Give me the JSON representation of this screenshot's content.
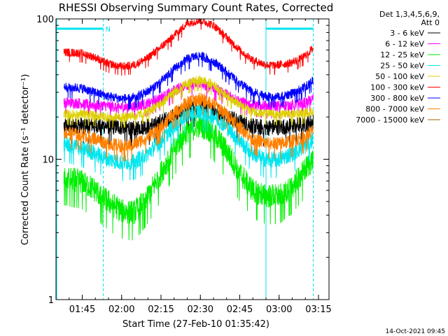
{
  "chart_data": {
    "type": "line",
    "title": "RHESSI Observing Summary Count Rates, Corrected",
    "xlabel": "Start Time (27-Feb-10 01:35:42)",
    "ylabel": "Corrected Count Rate (s⁻¹ detector⁻¹)",
    "yscale": "log",
    "ylim": [
      1,
      100
    ],
    "xlim": [
      "01:35",
      "03:19"
    ],
    "x_ticks": [
      "01:45",
      "02:00",
      "02:15",
      "02:30",
      "02:45",
      "03:00",
      "03:15"
    ],
    "y_ticks": [
      "1",
      "10",
      "100"
    ],
    "legend": {
      "placement": "right",
      "header": [
        "Det 1,3,4,5,6,9,",
        "Att 0"
      ]
    },
    "flags": [
      {
        "label": "N",
        "start": "01:35",
        "end": "01:53",
        "color": "#00e5ee"
      },
      {
        "label": "",
        "start": "02:55",
        "end": "03:13",
        "color": "#00e5ee"
      }
    ],
    "timeline_marks": [
      {
        "time": "01:53",
        "style": "dashed"
      },
      {
        "time": "02:55",
        "style": "solid"
      },
      {
        "time": "03:13",
        "style": "dashed"
      }
    ],
    "x": [
      "01:38",
      "01:45",
      "01:50",
      "01:55",
      "02:00",
      "02:05",
      "02:10",
      "02:15",
      "02:20",
      "02:25",
      "02:30",
      "02:35",
      "02:40",
      "02:45",
      "02:50",
      "02:55",
      "03:00",
      "03:05",
      "03:10",
      "03:13"
    ],
    "series": [
      {
        "name": "3 - 6 keV",
        "color": "#000000",
        "values": [
          17.5,
          17.5,
          17.6,
          17.2,
          17.0,
          16.8,
          17.2,
          18.5,
          20.5,
          22.5,
          23.5,
          22.5,
          20.5,
          18.5,
          17.3,
          16.8,
          17.0,
          17.3,
          17.8,
          18.5
        ]
      },
      {
        "name": "6 - 12 keV",
        "color": "#ff00ff",
        "values": [
          25.5,
          25.0,
          24.5,
          24.0,
          23.5,
          23.8,
          25.0,
          27.5,
          31.0,
          34.0,
          34.5,
          32.5,
          29.0,
          26.0,
          24.5,
          24.0,
          24.0,
          24.5,
          25.5,
          27.0
        ]
      },
      {
        "name": "12 - 25 keV",
        "color": "#00ee00",
        "values": [
          7.5,
          7.0,
          6.0,
          5.0,
          4.3,
          4.2,
          5.5,
          8.0,
          12.0,
          16.0,
          17.5,
          15.5,
          11.5,
          8.0,
          6.0,
          5.5,
          5.5,
          6.5,
          8.5,
          10.0
        ]
      },
      {
        "name": "25 - 50 keV",
        "color": "#00e5ee",
        "values": [
          13.0,
          12.0,
          11.0,
          10.0,
          9.5,
          9.7,
          11.0,
          13.5,
          17.5,
          21.0,
          22.0,
          20.5,
          17.0,
          13.5,
          11.0,
          10.0,
          10.0,
          11.0,
          12.5,
          14.0
        ]
      },
      {
        "name": "50 - 100 keV",
        "color": "#ddd000",
        "values": [
          21.0,
          21.0,
          20.5,
          20.0,
          20.0,
          20.5,
          22.0,
          25.0,
          30.0,
          35.0,
          37.0,
          34.0,
          29.0,
          24.5,
          22.0,
          21.0,
          21.0,
          21.0,
          21.5,
          22.0
        ]
      },
      {
        "name": "100 - 300 keV",
        "color": "#ff0000",
        "values": [
          58.0,
          57.0,
          53.0,
          48.0,
          46.0,
          47.0,
          53.0,
          63.0,
          77.0,
          93.0,
          98.0,
          90.0,
          74.0,
          60.0,
          51.0,
          47.0,
          47.0,
          49.0,
          55.0,
          62.0
        ]
      },
      {
        "name": "300 - 800 keV",
        "color": "#0000ff",
        "values": [
          33.0,
          32.0,
          30.0,
          28.0,
          27.0,
          27.5,
          30.5,
          36.0,
          44.0,
          52.0,
          55.0,
          50.0,
          42.0,
          35.0,
          30.0,
          28.0,
          28.0,
          29.5,
          33.0,
          37.0
        ]
      },
      {
        "name": "800 - 7000 keV",
        "color": "#ff8000",
        "values": [
          15.5,
          15.0,
          14.0,
          13.0,
          12.5,
          12.8,
          14.5,
          17.0,
          21.5,
          25.5,
          27.0,
          25.0,
          21.0,
          17.0,
          14.0,
          13.0,
          13.0,
          13.5,
          14.5,
          16.0
        ]
      },
      {
        "name": "7000 - 15000 keV",
        "color": "#a06000",
        "values": [
          null,
          null,
          null,
          null,
          null,
          null,
          null,
          null,
          null,
          null,
          null,
          null,
          null,
          null,
          null,
          null,
          null,
          null,
          null,
          null
        ]
      }
    ]
  },
  "footer": {
    "timestamp": "14-Oct-2021 09:45"
  }
}
